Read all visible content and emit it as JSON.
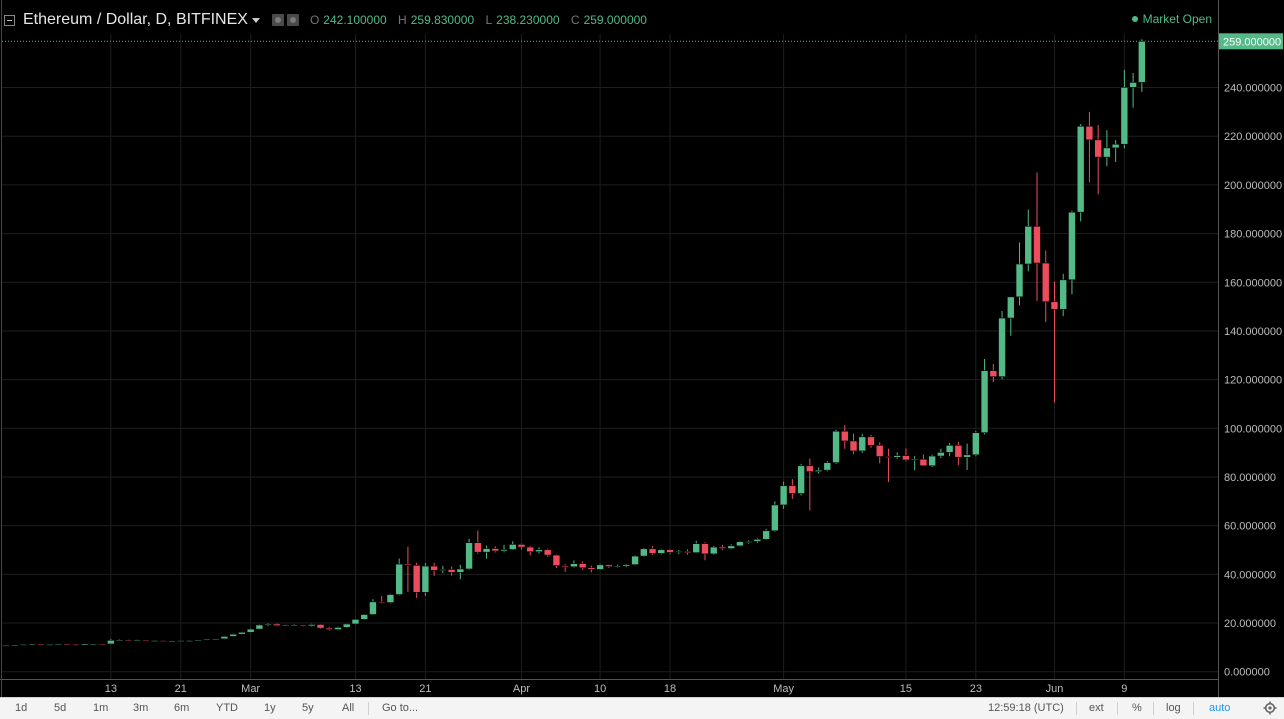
{
  "header": {
    "symbol": "Ethereum / Dollar, D, BITFINEX",
    "ohlc": [
      {
        "key": "O",
        "value": "242.100000"
      },
      {
        "key": "H",
        "value": "259.830000"
      },
      {
        "key": "L",
        "value": "238.230000"
      },
      {
        "key": "C",
        "value": "259.000000"
      }
    ],
    "market_status": "Market Open"
  },
  "colors": {
    "up": "#53b987",
    "down": "#eb4d5c",
    "grid": "#1e1e1e",
    "axis_text": "#bdbdbd",
    "price_tag_bg": "#53b987"
  },
  "chart_data": {
    "type": "candlestick",
    "ylim": [
      -3,
      262
    ],
    "y_ticks": [
      0,
      20,
      40,
      60,
      80,
      100,
      120,
      140,
      160,
      180,
      200,
      220,
      240
    ],
    "y_tick_labels": [
      "0.000000",
      "20.000000",
      "40.000000",
      "60.000000",
      "80.000000",
      "100.000000",
      "120.000000",
      "140.000000",
      "160.000000",
      "180.000000",
      "200.000000",
      "220.000000",
      "240.000000"
    ],
    "x_range": [
      "2017-02-01",
      "2017-06-18"
    ],
    "x_ticks": [
      {
        "date": "2017-02-13",
        "label": "13"
      },
      {
        "date": "2017-02-21",
        "label": "21"
      },
      {
        "date": "2017-03-01",
        "label": "Mar"
      },
      {
        "date": "2017-03-13",
        "label": "13"
      },
      {
        "date": "2017-03-21",
        "label": "21"
      },
      {
        "date": "2017-04-01",
        "label": "Apr"
      },
      {
        "date": "2017-04-10",
        "label": "10"
      },
      {
        "date": "2017-04-18",
        "label": "18"
      },
      {
        "date": "2017-05-01",
        "label": "May"
      },
      {
        "date": "2017-05-15",
        "label": "15"
      },
      {
        "date": "2017-05-23",
        "label": "23"
      },
      {
        "date": "2017-06-01",
        "label": "Jun"
      },
      {
        "date": "2017-06-09",
        "label": "9"
      }
    ],
    "last_price": 259.0,
    "last_price_label": "259.000000",
    "candles": [
      {
        "d": "2017-02-01",
        "o": 10.7,
        "h": 10.9,
        "l": 10.5,
        "c": 10.8
      },
      {
        "d": "2017-02-02",
        "o": 10.8,
        "h": 11.0,
        "l": 10.6,
        "c": 10.9
      },
      {
        "d": "2017-02-03",
        "o": 10.9,
        "h": 11.3,
        "l": 10.8,
        "c": 11.2
      },
      {
        "d": "2017-02-04",
        "o": 11.2,
        "h": 11.4,
        "l": 11.0,
        "c": 11.3
      },
      {
        "d": "2017-02-05",
        "o": 11.3,
        "h": 11.4,
        "l": 11.0,
        "c": 11.1
      },
      {
        "d": "2017-02-06",
        "o": 11.1,
        "h": 11.3,
        "l": 10.9,
        "c": 11.2
      },
      {
        "d": "2017-02-07",
        "o": 11.2,
        "h": 11.5,
        "l": 11.1,
        "c": 11.4
      },
      {
        "d": "2017-02-08",
        "o": 11.4,
        "h": 11.5,
        "l": 11.1,
        "c": 11.2
      },
      {
        "d": "2017-02-09",
        "o": 11.2,
        "h": 11.3,
        "l": 10.6,
        "c": 10.9
      },
      {
        "d": "2017-02-10",
        "o": 10.9,
        "h": 11.5,
        "l": 10.8,
        "c": 11.4
      },
      {
        "d": "2017-02-11",
        "o": 11.4,
        "h": 11.6,
        "l": 11.2,
        "c": 11.5
      },
      {
        "d": "2017-02-12",
        "o": 11.5,
        "h": 11.6,
        "l": 11.2,
        "c": 11.4
      },
      {
        "d": "2017-02-13",
        "o": 11.4,
        "h": 13.4,
        "l": 11.3,
        "c": 12.9
      },
      {
        "d": "2017-02-14",
        "o": 12.9,
        "h": 13.3,
        "l": 12.7,
        "c": 13.0
      },
      {
        "d": "2017-02-15",
        "o": 13.0,
        "h": 13.2,
        "l": 12.8,
        "c": 12.9
      },
      {
        "d": "2017-02-16",
        "o": 12.9,
        "h": 13.2,
        "l": 12.8,
        "c": 13.0
      },
      {
        "d": "2017-02-17",
        "o": 13.0,
        "h": 13.1,
        "l": 12.6,
        "c": 12.8
      },
      {
        "d": "2017-02-18",
        "o": 12.8,
        "h": 13.0,
        "l": 12.6,
        "c": 12.8
      },
      {
        "d": "2017-02-19",
        "o": 12.8,
        "h": 12.9,
        "l": 12.6,
        "c": 12.7
      },
      {
        "d": "2017-02-20",
        "o": 12.7,
        "h": 12.9,
        "l": 12.5,
        "c": 12.7
      },
      {
        "d": "2017-02-21",
        "o": 12.7,
        "h": 12.9,
        "l": 12.6,
        "c": 12.8
      },
      {
        "d": "2017-02-22",
        "o": 12.8,
        "h": 13.0,
        "l": 12.6,
        "c": 12.8
      },
      {
        "d": "2017-02-23",
        "o": 12.8,
        "h": 13.2,
        "l": 12.7,
        "c": 13.1
      },
      {
        "d": "2017-02-24",
        "o": 13.1,
        "h": 13.5,
        "l": 12.9,
        "c": 13.4
      },
      {
        "d": "2017-02-25",
        "o": 13.4,
        "h": 13.6,
        "l": 13.2,
        "c": 13.5
      },
      {
        "d": "2017-02-26",
        "o": 13.5,
        "h": 14.7,
        "l": 13.4,
        "c": 14.5
      },
      {
        "d": "2017-02-27",
        "o": 14.5,
        "h": 15.6,
        "l": 14.3,
        "c": 15.4
      },
      {
        "d": "2017-02-28",
        "o": 15.4,
        "h": 16.4,
        "l": 15.2,
        "c": 16.2
      },
      {
        "d": "2017-03-01",
        "o": 16.2,
        "h": 17.7,
        "l": 16.0,
        "c": 17.5
      },
      {
        "d": "2017-03-02",
        "o": 17.5,
        "h": 19.5,
        "l": 17.3,
        "c": 19.2
      },
      {
        "d": "2017-03-03",
        "o": 19.2,
        "h": 20.0,
        "l": 18.7,
        "c": 19.6
      },
      {
        "d": "2017-03-04",
        "o": 19.6,
        "h": 19.9,
        "l": 18.7,
        "c": 18.9
      },
      {
        "d": "2017-03-05",
        "o": 18.9,
        "h": 19.3,
        "l": 18.6,
        "c": 19.1
      },
      {
        "d": "2017-03-06",
        "o": 19.1,
        "h": 19.5,
        "l": 18.8,
        "c": 19.2
      },
      {
        "d": "2017-03-07",
        "o": 19.2,
        "h": 19.3,
        "l": 18.5,
        "c": 18.8
      },
      {
        "d": "2017-03-08",
        "o": 18.8,
        "h": 19.7,
        "l": 18.5,
        "c": 19.4
      },
      {
        "d": "2017-03-09",
        "o": 19.4,
        "h": 19.6,
        "l": 17.6,
        "c": 17.9
      },
      {
        "d": "2017-03-10",
        "o": 17.9,
        "h": 18.4,
        "l": 16.9,
        "c": 17.3
      },
      {
        "d": "2017-03-11",
        "o": 17.3,
        "h": 18.5,
        "l": 17.0,
        "c": 18.2
      },
      {
        "d": "2017-03-12",
        "o": 18.2,
        "h": 19.8,
        "l": 18.0,
        "c": 19.6
      },
      {
        "d": "2017-03-13",
        "o": 19.6,
        "h": 21.6,
        "l": 19.4,
        "c": 21.5
      },
      {
        "d": "2017-03-14",
        "o": 21.5,
        "h": 23.7,
        "l": 21.2,
        "c": 23.5
      },
      {
        "d": "2017-03-15",
        "o": 23.5,
        "h": 29.8,
        "l": 23.3,
        "c": 28.7
      },
      {
        "d": "2017-03-16",
        "o": 28.7,
        "h": 31.1,
        "l": 28.0,
        "c": 28.4
      },
      {
        "d": "2017-03-17",
        "o": 28.4,
        "h": 32.0,
        "l": 28.1,
        "c": 31.7
      },
      {
        "d": "2017-03-18",
        "o": 31.7,
        "h": 46.5,
        "l": 31.4,
        "c": 44.2
      },
      {
        "d": "2017-03-19",
        "o": 44.2,
        "h": 51.3,
        "l": 32.8,
        "c": 43.7
      },
      {
        "d": "2017-03-20",
        "o": 43.7,
        "h": 44.8,
        "l": 30.3,
        "c": 32.6
      },
      {
        "d": "2017-03-21",
        "o": 32.6,
        "h": 44.6,
        "l": 31.2,
        "c": 43.4
      },
      {
        "d": "2017-03-22",
        "o": 43.4,
        "h": 44.8,
        "l": 39.4,
        "c": 41.6
      },
      {
        "d": "2017-03-23",
        "o": 41.6,
        "h": 43.5,
        "l": 40.5,
        "c": 42.0
      },
      {
        "d": "2017-03-24",
        "o": 42.0,
        "h": 43.2,
        "l": 39.5,
        "c": 40.8
      },
      {
        "d": "2017-03-25",
        "o": 40.8,
        "h": 43.9,
        "l": 38.0,
        "c": 42.2
      },
      {
        "d": "2017-03-26",
        "o": 42.2,
        "h": 54.6,
        "l": 41.8,
        "c": 53.0
      },
      {
        "d": "2017-03-27",
        "o": 53.0,
        "h": 58.0,
        "l": 48.4,
        "c": 49.1
      },
      {
        "d": "2017-03-28",
        "o": 49.1,
        "h": 51.8,
        "l": 46.5,
        "c": 50.6
      },
      {
        "d": "2017-03-29",
        "o": 50.6,
        "h": 51.5,
        "l": 49.0,
        "c": 49.6
      },
      {
        "d": "2017-03-30",
        "o": 49.6,
        "h": 52.1,
        "l": 49.0,
        "c": 50.2
      },
      {
        "d": "2017-03-31",
        "o": 50.2,
        "h": 53.6,
        "l": 49.9,
        "c": 52.3
      },
      {
        "d": "2017-04-01",
        "o": 52.3,
        "h": 52.6,
        "l": 50.2,
        "c": 51.2
      },
      {
        "d": "2017-04-02",
        "o": 51.2,
        "h": 51.7,
        "l": 47.8,
        "c": 49.3
      },
      {
        "d": "2017-04-03",
        "o": 49.3,
        "h": 51.1,
        "l": 48.6,
        "c": 50.1
      },
      {
        "d": "2017-04-04",
        "o": 50.1,
        "h": 50.6,
        "l": 47.2,
        "c": 47.9
      },
      {
        "d": "2017-04-05",
        "o": 47.9,
        "h": 48.2,
        "l": 42.6,
        "c": 43.6
      },
      {
        "d": "2017-04-06",
        "o": 43.6,
        "h": 44.2,
        "l": 41.0,
        "c": 43.1
      },
      {
        "d": "2017-04-07",
        "o": 43.1,
        "h": 45.7,
        "l": 42.8,
        "c": 44.4
      },
      {
        "d": "2017-04-08",
        "o": 44.4,
        "h": 45.3,
        "l": 41.8,
        "c": 42.7
      },
      {
        "d": "2017-04-09",
        "o": 42.7,
        "h": 43.6,
        "l": 40.8,
        "c": 42.0
      },
      {
        "d": "2017-04-10",
        "o": 42.0,
        "h": 44.3,
        "l": 41.9,
        "c": 43.9
      },
      {
        "d": "2017-04-11",
        "o": 43.9,
        "h": 44.1,
        "l": 42.7,
        "c": 43.2
      },
      {
        "d": "2017-04-12",
        "o": 43.2,
        "h": 44.0,
        "l": 42.7,
        "c": 43.4
      },
      {
        "d": "2017-04-13",
        "o": 43.4,
        "h": 44.3,
        "l": 43.0,
        "c": 44.0
      },
      {
        "d": "2017-04-14",
        "o": 44.0,
        "h": 47.8,
        "l": 43.7,
        "c": 47.5
      },
      {
        "d": "2017-04-15",
        "o": 47.5,
        "h": 50.9,
        "l": 47.2,
        "c": 50.5
      },
      {
        "d": "2017-04-16",
        "o": 50.5,
        "h": 51.6,
        "l": 48.0,
        "c": 48.6
      },
      {
        "d": "2017-04-17",
        "o": 48.6,
        "h": 50.5,
        "l": 48.2,
        "c": 50.1
      },
      {
        "d": "2017-04-18",
        "o": 50.1,
        "h": 50.5,
        "l": 48.3,
        "c": 49.0
      },
      {
        "d": "2017-04-19",
        "o": 49.0,
        "h": 50.0,
        "l": 48.3,
        "c": 49.4
      },
      {
        "d": "2017-04-20",
        "o": 49.4,
        "h": 50.3,
        "l": 48.1,
        "c": 48.9
      },
      {
        "d": "2017-04-21",
        "o": 48.9,
        "h": 53.8,
        "l": 48.7,
        "c": 52.6
      },
      {
        "d": "2017-04-22",
        "o": 52.6,
        "h": 53.2,
        "l": 45.8,
        "c": 48.4
      },
      {
        "d": "2017-04-23",
        "o": 48.4,
        "h": 51.7,
        "l": 48.0,
        "c": 51.2
      },
      {
        "d": "2017-04-24",
        "o": 51.2,
        "h": 52.1,
        "l": 49.9,
        "c": 50.6
      },
      {
        "d": "2017-04-25",
        "o": 50.6,
        "h": 52.3,
        "l": 50.3,
        "c": 51.7
      },
      {
        "d": "2017-04-26",
        "o": 51.7,
        "h": 53.8,
        "l": 51.5,
        "c": 53.4
      },
      {
        "d": "2017-04-27",
        "o": 53.4,
        "h": 54.0,
        "l": 52.6,
        "c": 53.5
      },
      {
        "d": "2017-04-28",
        "o": 53.5,
        "h": 54.8,
        "l": 53.0,
        "c": 54.4
      },
      {
        "d": "2017-04-29",
        "o": 54.4,
        "h": 58.7,
        "l": 54.1,
        "c": 57.9
      },
      {
        "d": "2017-04-30",
        "o": 57.9,
        "h": 70.0,
        "l": 57.5,
        "c": 68.5
      },
      {
        "d": "2017-05-01",
        "o": 68.5,
        "h": 78.1,
        "l": 66.9,
        "c": 76.4
      },
      {
        "d": "2017-05-02",
        "o": 76.4,
        "h": 79.1,
        "l": 71.0,
        "c": 73.2
      },
      {
        "d": "2017-05-03",
        "o": 73.2,
        "h": 85.4,
        "l": 72.4,
        "c": 84.6
      },
      {
        "d": "2017-05-04",
        "o": 84.6,
        "h": 87.6,
        "l": 66.2,
        "c": 82.2
      },
      {
        "d": "2017-05-05",
        "o": 82.2,
        "h": 83.9,
        "l": 81.4,
        "c": 82.8
      },
      {
        "d": "2017-05-06",
        "o": 82.8,
        "h": 86.5,
        "l": 82.3,
        "c": 85.9
      },
      {
        "d": "2017-05-07",
        "o": 85.9,
        "h": 99.4,
        "l": 85.4,
        "c": 98.8
      },
      {
        "d": "2017-05-08",
        "o": 98.8,
        "h": 101.3,
        "l": 91.6,
        "c": 94.8
      },
      {
        "d": "2017-05-09",
        "o": 94.8,
        "h": 97.8,
        "l": 89.4,
        "c": 90.7
      },
      {
        "d": "2017-05-10",
        "o": 90.7,
        "h": 97.7,
        "l": 89.9,
        "c": 96.5
      },
      {
        "d": "2017-05-11",
        "o": 96.5,
        "h": 97.3,
        "l": 92.0,
        "c": 93.0
      },
      {
        "d": "2017-05-12",
        "o": 93.0,
        "h": 94.3,
        "l": 85.6,
        "c": 88.4
      },
      {
        "d": "2017-05-13",
        "o": 88.4,
        "h": 91.6,
        "l": 77.9,
        "c": 88.1
      },
      {
        "d": "2017-05-14",
        "o": 88.1,
        "h": 90.1,
        "l": 87.4,
        "c": 88.8
      },
      {
        "d": "2017-05-15",
        "o": 88.8,
        "h": 91.8,
        "l": 86.4,
        "c": 87.0
      },
      {
        "d": "2017-05-16",
        "o": 87.0,
        "h": 88.6,
        "l": 82.8,
        "c": 87.3
      },
      {
        "d": "2017-05-17",
        "o": 87.3,
        "h": 89.3,
        "l": 84.5,
        "c": 84.6
      },
      {
        "d": "2017-05-18",
        "o": 84.6,
        "h": 89.2,
        "l": 84.1,
        "c": 88.6
      },
      {
        "d": "2017-05-19",
        "o": 88.6,
        "h": 91.6,
        "l": 87.8,
        "c": 90.1
      },
      {
        "d": "2017-05-20",
        "o": 90.1,
        "h": 94.0,
        "l": 88.5,
        "c": 93.0
      },
      {
        "d": "2017-05-21",
        "o": 93.0,
        "h": 94.4,
        "l": 84.9,
        "c": 88.1
      },
      {
        "d": "2017-05-22",
        "o": 88.1,
        "h": 93.7,
        "l": 82.9,
        "c": 89.1
      },
      {
        "d": "2017-05-23",
        "o": 89.1,
        "h": 98.9,
        "l": 88.5,
        "c": 98.2
      },
      {
        "d": "2017-05-24",
        "o": 98.2,
        "h": 128.5,
        "l": 97.5,
        "c": 123.7
      },
      {
        "d": "2017-05-25",
        "o": 123.7,
        "h": 126.4,
        "l": 119.0,
        "c": 121.2
      },
      {
        "d": "2017-05-26",
        "o": 121.2,
        "h": 148.2,
        "l": 120.1,
        "c": 145.3
      },
      {
        "d": "2017-05-27",
        "o": 145.3,
        "h": 154.0,
        "l": 138.0,
        "c": 154.0
      },
      {
        "d": "2017-05-28",
        "o": 154.0,
        "h": 176.4,
        "l": 150.5,
        "c": 167.5
      },
      {
        "d": "2017-05-29",
        "o": 167.5,
        "h": 189.8,
        "l": 164.5,
        "c": 183.0
      },
      {
        "d": "2017-05-30",
        "o": 183.0,
        "h": 205.1,
        "l": 152.3,
        "c": 167.9
      },
      {
        "d": "2017-05-31",
        "o": 167.9,
        "h": 173.1,
        "l": 143.6,
        "c": 152.0
      },
      {
        "d": "2017-06-01",
        "o": 152.0,
        "h": 160.3,
        "l": 110.6,
        "c": 148.9
      },
      {
        "d": "2017-06-02",
        "o": 148.9,
        "h": 163.5,
        "l": 146.1,
        "c": 161.0
      },
      {
        "d": "2017-06-03",
        "o": 161.0,
        "h": 189.4,
        "l": 155.0,
        "c": 188.8
      },
      {
        "d": "2017-06-04",
        "o": 188.8,
        "h": 225.0,
        "l": 185.0,
        "c": 224.1
      },
      {
        "d": "2017-06-05",
        "o": 224.1,
        "h": 230.0,
        "l": 201.1,
        "c": 218.5
      },
      {
        "d": "2017-06-06",
        "o": 218.5,
        "h": 224.6,
        "l": 196.1,
        "c": 211.4
      },
      {
        "d": "2017-06-07",
        "o": 211.4,
        "h": 222.5,
        "l": 207.7,
        "c": 215.2
      },
      {
        "d": "2017-06-08",
        "o": 215.2,
        "h": 218.4,
        "l": 209.4,
        "c": 216.7
      },
      {
        "d": "2017-06-09",
        "o": 216.7,
        "h": 247.3,
        "l": 215.0,
        "c": 240.1
      },
      {
        "d": "2017-06-10",
        "o": 240.1,
        "h": 246.0,
        "l": 231.7,
        "c": 242.1
      },
      {
        "d": "2017-06-11",
        "o": 242.1,
        "h": 259.83,
        "l": 238.23,
        "c": 259.0
      }
    ]
  },
  "toolbar": {
    "ranges": [
      "1d",
      "5d",
      "1m",
      "3m",
      "6m",
      "YTD",
      "1y",
      "5y",
      "All"
    ],
    "goto_label": "Go to...",
    "time_label": "12:59:18 (UTC)",
    "ext_label": "ext",
    "percent_label": "%",
    "log_label": "log",
    "auto_label": "auto"
  }
}
